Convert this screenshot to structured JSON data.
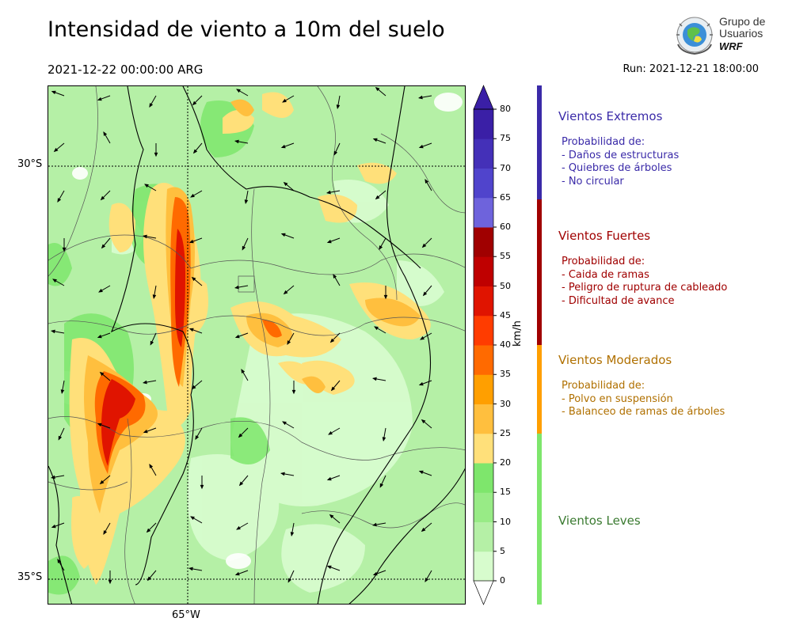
{
  "title": "Intensidad de viento a 10m del suelo",
  "valid_time": "2021-12-22 00:00:00 ARG",
  "run_time": "Run: 2021-12-21 18:00:00",
  "logo": {
    "line1": "Grupo de",
    "line2": "Usuarios",
    "line3": "WRF"
  },
  "map": {
    "lat_labels": [
      "30°S",
      "35°S"
    ],
    "lon_labels": [
      "65°W"
    ],
    "background_color": "#b5f0a6"
  },
  "colorbar": {
    "unit": "km/h",
    "ticks": [
      "0",
      "5",
      "10",
      "15",
      "20",
      "25",
      "30",
      "35",
      "40",
      "45",
      "50",
      "55",
      "60",
      "65",
      "70",
      "75",
      "80"
    ],
    "colors": [
      "#ffffff",
      "#d7fccd",
      "#b5f0a6",
      "#98eb86",
      "#7ee66c",
      "#ffe07a",
      "#ffbf3e",
      "#ff9f00",
      "#ff6a00",
      "#ff3c00",
      "#e01400",
      "#bf0000",
      "#a00000",
      "#6e63dc",
      "#5044cc",
      "#4430b8",
      "#3a1fa6"
    ]
  },
  "categories": [
    {
      "name": "Vientos Extremos",
      "color": "#3a2aa8",
      "bar_color": "#3a2aa8",
      "lines": [
        "Probabilidad de:",
        "- Daños de estructuras",
        "- Quiebres de árboles",
        "- No circular"
      ]
    },
    {
      "name": "Vientos Fuertes",
      "color": "#a00000",
      "bar_color": "#a00000",
      "lines": [
        "Probabilidad de:",
        "- Caida de ramas",
        "- Peligro de ruptura de cableado",
        "- Dificultad de avance"
      ]
    },
    {
      "name": "Vientos Moderados",
      "color": "#b07000",
      "bar_color": "#ff9f00",
      "lines": [
        "Probabilidad de:",
        "- Polvo en suspensión",
        "- Balanceo de ramas de árboles"
      ]
    },
    {
      "name": "Vientos Leves",
      "color": "#3a7a30",
      "bar_color": "#7ee66c",
      "lines": []
    }
  ]
}
